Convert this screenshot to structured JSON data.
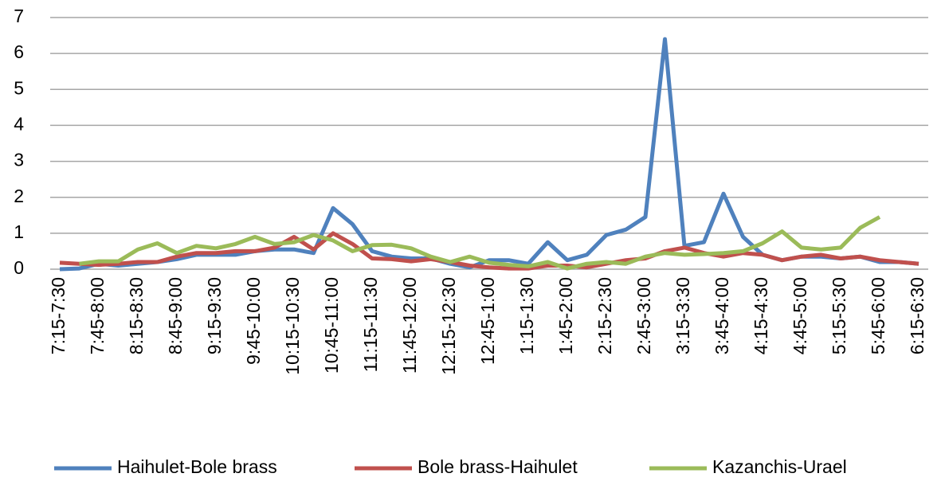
{
  "chart_data": {
    "type": "line",
    "categories": [
      "7:15-7:30",
      null,
      "7:45-8:00",
      null,
      "8:15-8:30",
      null,
      "8:45-9:00",
      null,
      "9:15-9:30",
      null,
      "9:45-10:00",
      null,
      "10:15-10:30",
      null,
      "10:45-11:00",
      null,
      "11:15-11:30",
      null,
      "11:45-12:00",
      null,
      "12:15-12:30",
      null,
      "12:45-1:00",
      null,
      "1:15-1:30",
      null,
      "1:45-2:00",
      null,
      "2:15-2:30",
      null,
      "2:45-3:00",
      null,
      "3:15-3:30",
      null,
      "3:45-4:00",
      null,
      "4:15-4:30",
      null,
      "4:45-5:00",
      null,
      "5:15-5:30",
      null,
      "5:45-6:00",
      null,
      "6:15-6:30"
    ],
    "series": [
      {
        "name": "Haihulet-Bole brass",
        "color": "#4f81bd",
        "values": [
          0.0,
          0.02,
          0.15,
          0.1,
          0.15,
          0.2,
          0.28,
          0.4,
          0.4,
          0.4,
          0.5,
          0.55,
          0.55,
          0.45,
          1.7,
          1.25,
          0.5,
          0.35,
          0.3,
          0.3,
          0.15,
          0.05,
          0.25,
          0.25,
          0.15,
          0.75,
          0.25,
          0.4,
          0.95,
          1.1,
          1.45,
          6.4,
          0.65,
          0.75,
          2.1,
          0.9,
          0.4,
          0.25,
          0.35,
          0.35,
          0.3,
          0.35,
          0.2,
          0.2,
          0.15
        ]
      },
      {
        "name": "Bole brass-Haihulet",
        "color": "#c0504d",
        "values": [
          0.18,
          0.15,
          0.12,
          0.15,
          0.2,
          0.2,
          0.35,
          0.45,
          0.45,
          0.5,
          0.5,
          0.6,
          0.9,
          0.55,
          1.0,
          0.7,
          0.3,
          0.28,
          0.22,
          0.28,
          0.2,
          0.1,
          0.05,
          0.02,
          0.02,
          0.1,
          0.1,
          0.05,
          0.15,
          0.25,
          0.3,
          0.5,
          0.6,
          0.45,
          0.35,
          0.45,
          0.4,
          0.25,
          0.35,
          0.4,
          0.3,
          0.35,
          0.25,
          0.2,
          0.15
        ]
      },
      {
        "name": "Kazanchis-Urael",
        "color": "#9bbb59",
        "values": [
          null,
          0.15,
          0.22,
          0.22,
          0.55,
          0.72,
          0.45,
          0.65,
          0.58,
          0.7,
          0.9,
          0.7,
          0.75,
          0.95,
          0.8,
          0.5,
          0.67,
          0.68,
          0.58,
          0.35,
          0.2,
          0.35,
          0.18,
          0.12,
          0.08,
          0.2,
          0.02,
          0.15,
          0.2,
          0.15,
          0.35,
          0.45,
          0.4,
          0.42,
          0.45,
          0.5,
          0.72,
          1.05,
          0.6,
          0.55,
          0.6,
          1.15,
          1.45,
          null,
          null
        ]
      }
    ],
    "ylim": [
      0,
      7
    ],
    "yticks": [
      0,
      1,
      2,
      3,
      4,
      5,
      6,
      7
    ],
    "grid": true,
    "legend": "bottom"
  }
}
